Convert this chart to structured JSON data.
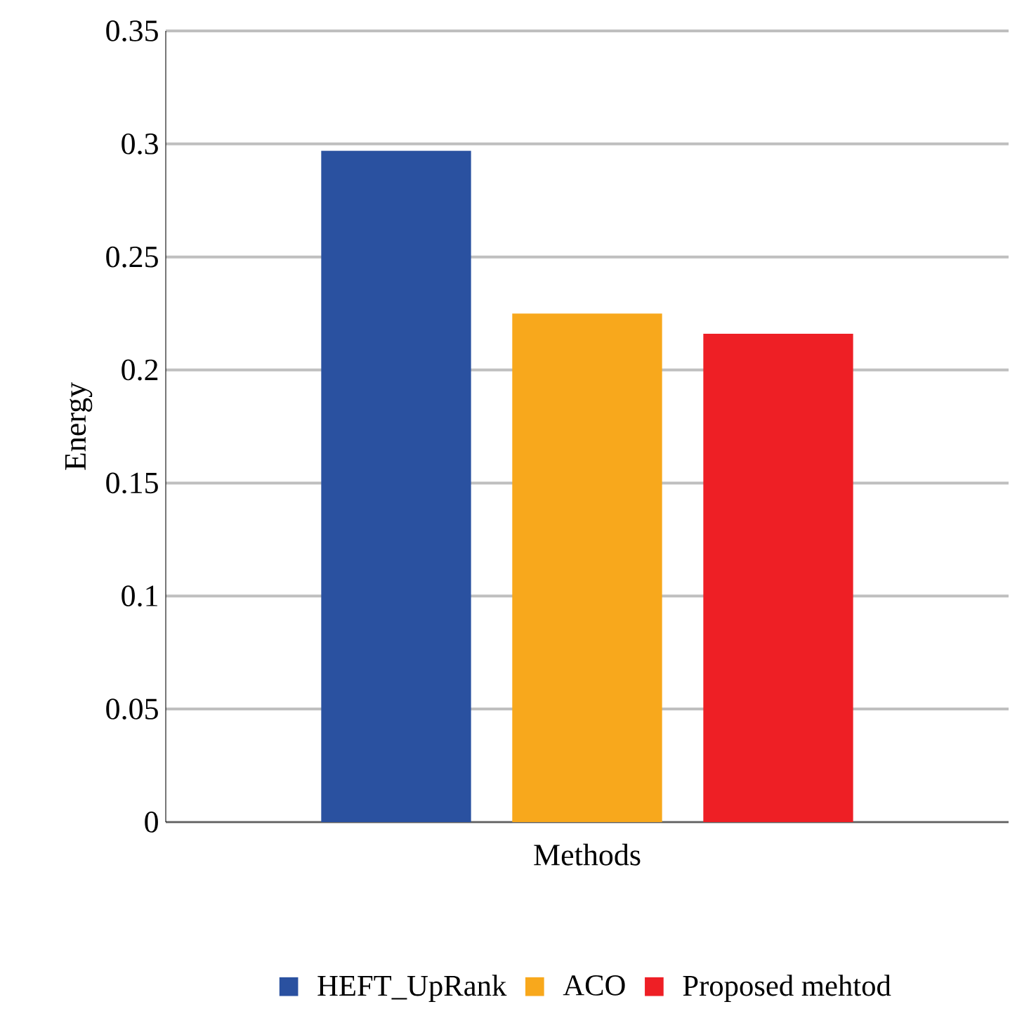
{
  "chart_data": {
    "type": "bar",
    "categories": [
      "Methods"
    ],
    "ylabel": "Energy",
    "series": [
      {
        "name": "HEFT_UpRank",
        "color": "#2a51a0",
        "values": [
          0.297
        ]
      },
      {
        "name": "ACO",
        "color": "#f8a81c",
        "values": [
          0.225
        ]
      },
      {
        "name": "Proposed mehtod",
        "color": "#ee1f25",
        "values": [
          0.216
        ]
      }
    ],
    "ylim": [
      0,
      0.35
    ],
    "yticks": [
      0,
      0.05,
      0.1,
      0.15,
      0.2,
      0.25,
      0.3,
      0.35
    ],
    "grid": "y",
    "legend": "bottom"
  }
}
